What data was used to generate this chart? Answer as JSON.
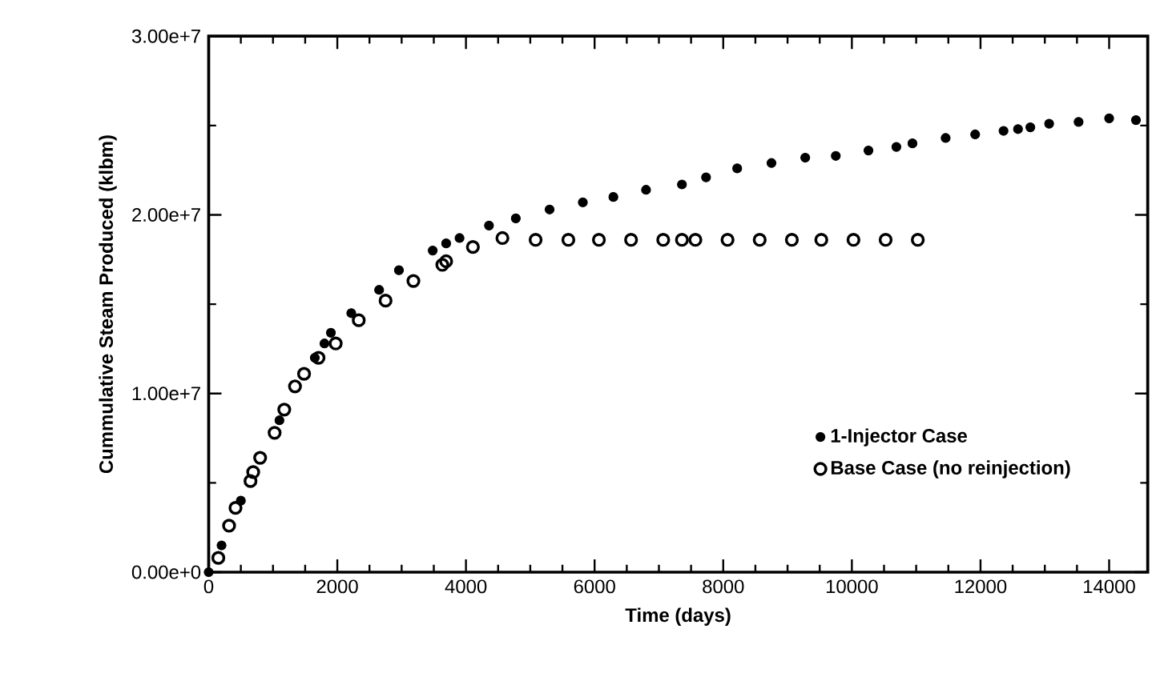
{
  "chart_data": {
    "type": "scatter",
    "xlabel": "Time  (days)",
    "ylabel": "Cummulative  Steam  Produced  (klbm)",
    "xlim": [
      0,
      14600
    ],
    "ylim": [
      0,
      30000000
    ],
    "xticks": [
      0,
      2000,
      4000,
      6000,
      8000,
      10000,
      12000,
      14000
    ],
    "yticks": [
      {
        "value": 0,
        "label": "0.00e+0"
      },
      {
        "value": 10000000,
        "label": "1.00e+7"
      },
      {
        "value": 20000000,
        "label": "2.00e+7"
      },
      {
        "value": 30000000,
        "label": "3.00e+7"
      }
    ],
    "grid": false,
    "legend": "bottom right",
    "marker": "circle",
    "series": [
      {
        "name": "1-Injector Case",
        "color": "#000000",
        "x": [
          0,
          200,
          500,
          1100,
          1400,
          1650,
          1800,
          1900,
          2217,
          2650,
          2958,
          3483,
          3692,
          3900,
          4358,
          4775,
          5300,
          5817,
          6292,
          6800,
          7358,
          7733,
          8217,
          8750,
          9275,
          9750,
          10258,
          10692,
          10942,
          11458,
          11917,
          12358,
          12583,
          12775,
          13067,
          13525,
          14000,
          14417
        ],
        "values": [
          0,
          1500000,
          4000000,
          8500000,
          null,
          12000000,
          12800000,
          13400000,
          14500000,
          15800000,
          16900000,
          18000000,
          18400000,
          18700000,
          19400000,
          19800000,
          20300000,
          20700000,
          21000000,
          21400000,
          21700000,
          22100000,
          22600000,
          22900000,
          23200000,
          23300000,
          23600000,
          23800000,
          24000000,
          24300000,
          24500000,
          24700000,
          24800000,
          24900000,
          25100000,
          25200000,
          25400000,
          25300000
        ]
      },
      {
        "name": "Base Case (no reinjection)",
        "color": "#000000",
        "x": [
          150,
          317,
          417,
          650,
          692,
          800,
          1025,
          1175,
          1342,
          1483,
          1708,
          1975,
          2333,
          2750,
          3183,
          3633,
          3692,
          4108,
          4567,
          5083,
          5592,
          6067,
          6567,
          7067,
          7358,
          7567,
          8067,
          8567,
          9067,
          9525,
          10025,
          10525,
          11025
        ],
        "values": [
          800000,
          2600000,
          3600000,
          5100000,
          5600000,
          6400000,
          7800000,
          9100000,
          10400000,
          11100000,
          12000000,
          12800000,
          14100000,
          15200000,
          16300000,
          17200000,
          17400000,
          18200000,
          18700000,
          18600000,
          18600000,
          18600000,
          18600000,
          18600000,
          18600000,
          18600000,
          18600000,
          18600000,
          18600000,
          18600000,
          18600000,
          18600000,
          18600000
        ]
      }
    ]
  }
}
